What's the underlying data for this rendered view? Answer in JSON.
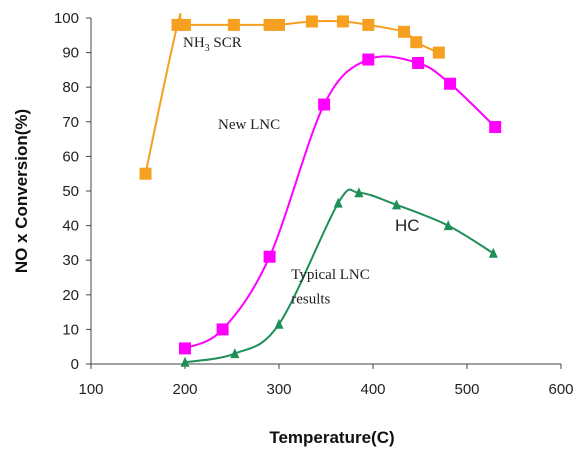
{
  "chart_data": {
    "type": "line",
    "title": "",
    "xlabel": "Temperature(C)",
    "ylabel": "NO x Conversion(%)",
    "xlim": [
      100,
      600
    ],
    "ylim": [
      0,
      100
    ],
    "xticks": [
      100,
      200,
      300,
      400,
      500,
      600
    ],
    "yticks": [
      0,
      10,
      20,
      30,
      40,
      50,
      60,
      70,
      80,
      90,
      100
    ],
    "grid": false,
    "legend": "none",
    "series": [
      {
        "label_parts": [
          "NH",
          "3",
          " SCR"
        ],
        "color": "#f5a020",
        "marker": "square",
        "points": [
          [
            158,
            55
          ],
          [
            192,
            98
          ],
          [
            200,
            98
          ],
          [
            252,
            98
          ],
          [
            290,
            98
          ],
          [
            300,
            98
          ],
          [
            335,
            99
          ],
          [
            368,
            99
          ],
          [
            395,
            98
          ],
          [
            433,
            96
          ],
          [
            446,
            93
          ],
          [
            470,
            90
          ]
        ]
      },
      {
        "label": "New LNC",
        "color": "#ff00ff",
        "marker": "square",
        "points": [
          [
            200,
            4.5
          ],
          [
            240,
            10
          ],
          [
            290,
            31
          ],
          [
            348,
            75
          ],
          [
            395,
            88
          ],
          [
            448,
            87
          ],
          [
            482,
            81
          ],
          [
            530,
            68.5
          ]
        ]
      },
      {
        "label": "HC",
        "color": "#1e8f57",
        "marker": "triangle",
        "points": [
          [
            200,
            0.5
          ],
          [
            253,
            3
          ],
          [
            300,
            11.5
          ],
          [
            363,
            46.5
          ],
          [
            385,
            49.5
          ],
          [
            425,
            46
          ],
          [
            480,
            40
          ],
          [
            528,
            32
          ]
        ]
      }
    ],
    "annotations": [
      {
        "text": "Typical LNC",
        "x": 313,
        "y": 24.5
      },
      {
        "text": "results",
        "x": 313,
        "y": 17.5
      }
    ]
  }
}
